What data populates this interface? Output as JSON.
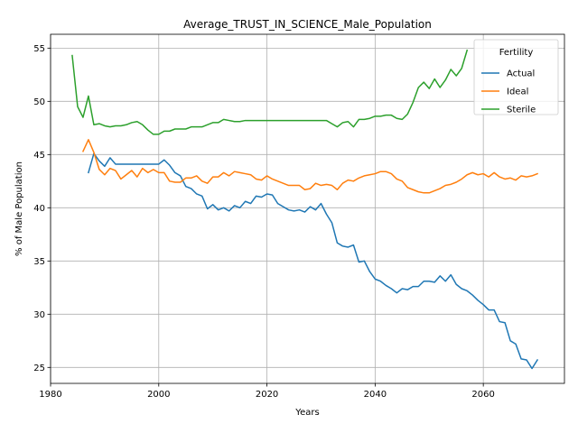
{
  "chart_data": {
    "type": "line",
    "title": "Average_TRUST_IN_SCIENCE_Male_Population",
    "xlabel": "Years",
    "ylabel": "% of Male Population",
    "xlim": [
      1980,
      2075
    ],
    "ylim": [
      23.5,
      56.3
    ],
    "xticks": [
      1980,
      2000,
      2020,
      2040,
      2060
    ],
    "yticks": [
      25,
      30,
      35,
      40,
      45,
      50,
      55
    ],
    "grid": true,
    "legend": {
      "title": "Fertility",
      "position": "top-right"
    },
    "series": [
      {
        "name": "Actual",
        "color": "#1f77b4",
        "x": [
          1987,
          1988,
          1989,
          1990,
          1991,
          1992,
          1993,
          1994,
          1995,
          1996,
          1997,
          1998,
          1999,
          2000,
          2001,
          2002,
          2003,
          2004,
          2005,
          2006,
          2007,
          2008,
          2009,
          2010,
          2011,
          2012,
          2013,
          2014,
          2015,
          2016,
          2017,
          2018,
          2019,
          2020,
          2021,
          2022,
          2023,
          2024,
          2025,
          2026,
          2027,
          2028,
          2029,
          2030,
          2031,
          2032,
          2033,
          2034,
          2035,
          2036,
          2037,
          2038,
          2039,
          2040,
          2041,
          2042,
          2043,
          2044,
          2045,
          2046,
          2047,
          2048,
          2049,
          2050,
          2051,
          2052,
          2053,
          2054,
          2055,
          2056,
          2057,
          2058,
          2059,
          2060,
          2061,
          2062,
          2063,
          2064,
          2065,
          2066,
          2067,
          2068,
          2069,
          2070
        ],
        "y": [
          43.3,
          45.1,
          44.4,
          43.9,
          44.7,
          44.1,
          44.1,
          44.1,
          44.1,
          44.1,
          44.1,
          44.1,
          44.1,
          44.1,
          44.5,
          44.0,
          43.3,
          43.0,
          42.0,
          41.8,
          41.3,
          41.1,
          39.9,
          40.3,
          39.8,
          40.0,
          39.7,
          40.2,
          40.0,
          40.6,
          40.4,
          41.1,
          41.0,
          41.3,
          41.2,
          40.4,
          40.1,
          39.8,
          39.7,
          39.8,
          39.6,
          40.1,
          39.8,
          40.4,
          39.4,
          38.6,
          36.7,
          36.4,
          36.3,
          36.5,
          34.9,
          35.0,
          34.0,
          33.3,
          33.1,
          32.7,
          32.4,
          32.0,
          32.4,
          32.3,
          32.6,
          32.6,
          33.1,
          33.1,
          33.0,
          33.6,
          33.1,
          33.7,
          32.8,
          32.4,
          32.2,
          31.8,
          31.3,
          30.9,
          30.4,
          30.4,
          29.3,
          29.2,
          27.5,
          27.2,
          25.8,
          25.7,
          24.9,
          25.7
        ]
      },
      {
        "name": "Ideal",
        "color": "#ff7f0e",
        "x": [
          1986,
          1987,
          1988,
          1989,
          1990,
          1991,
          1992,
          1993,
          1994,
          1995,
          1996,
          1997,
          1998,
          1999,
          2000,
          2001,
          2002,
          2003,
          2004,
          2005,
          2006,
          2007,
          2008,
          2009,
          2010,
          2011,
          2012,
          2013,
          2014,
          2015,
          2016,
          2017,
          2018,
          2019,
          2020,
          2021,
          2022,
          2023,
          2024,
          2025,
          2026,
          2027,
          2028,
          2029,
          2030,
          2031,
          2032,
          2033,
          2034,
          2035,
          2036,
          2037,
          2038,
          2039,
          2040,
          2041,
          2042,
          2043,
          2044,
          2045,
          2046,
          2047,
          2048,
          2049,
          2050,
          2051,
          2052,
          2053,
          2054,
          2055,
          2056,
          2057,
          2058,
          2059,
          2060,
          2061,
          2062,
          2063,
          2064,
          2065,
          2066,
          2067,
          2068,
          2069,
          2070
        ],
        "y": [
          45.3,
          46.4,
          45.2,
          43.6,
          43.1,
          43.7,
          43.5,
          42.7,
          43.1,
          43.5,
          42.9,
          43.7,
          43.3,
          43.6,
          43.3,
          43.3,
          42.5,
          42.4,
          42.4,
          42.8,
          42.8,
          43.0,
          42.5,
          42.3,
          42.9,
          42.9,
          43.3,
          43.0,
          43.4,
          43.3,
          43.2,
          43.1,
          42.7,
          42.6,
          43.0,
          42.7,
          42.5,
          42.3,
          42.1,
          42.1,
          42.1,
          41.7,
          41.8,
          42.3,
          42.1,
          42.2,
          42.1,
          41.7,
          42.3,
          42.6,
          42.5,
          42.8,
          43.0,
          43.1,
          43.2,
          43.4,
          43.4,
          43.2,
          42.7,
          42.5,
          41.9,
          41.7,
          41.5,
          41.4,
          41.4,
          41.6,
          41.8,
          42.1,
          42.2,
          42.4,
          42.7,
          43.1,
          43.3,
          43.1,
          43.2,
          42.9,
          43.3,
          42.9,
          42.7,
          42.8,
          42.6,
          43.0,
          42.9,
          43.0,
          43.2
        ]
      },
      {
        "name": "Sterile",
        "color": "#2ca02c",
        "x": [
          1984,
          1985,
          1986,
          1987,
          1988,
          1989,
          1990,
          1991,
          1992,
          1993,
          1994,
          1995,
          1996,
          1997,
          1998,
          1999,
          2000,
          2001,
          2002,
          2003,
          2004,
          2005,
          2006,
          2007,
          2008,
          2009,
          2010,
          2011,
          2012,
          2013,
          2014,
          2015,
          2016,
          2017,
          2018,
          2019,
          2020,
          2021,
          2022,
          2023,
          2024,
          2025,
          2026,
          2027,
          2028,
          2029,
          2030,
          2031,
          2032,
          2033,
          2034,
          2035,
          2036,
          2037,
          2038,
          2039,
          2040,
          2041,
          2042,
          2043,
          2044,
          2045,
          2046,
          2047,
          2048,
          2049,
          2050,
          2051,
          2052,
          2053,
          2054,
          2055,
          2056,
          2057
        ],
        "y": [
          54.3,
          49.5,
          48.5,
          50.5,
          47.8,
          47.9,
          47.7,
          47.6,
          47.7,
          47.7,
          47.8,
          48.0,
          48.1,
          47.8,
          47.3,
          46.9,
          46.9,
          47.2,
          47.2,
          47.4,
          47.4,
          47.4,
          47.6,
          47.6,
          47.6,
          47.8,
          48.0,
          48.0,
          48.3,
          48.2,
          48.1,
          48.1,
          48.2,
          48.2,
          48.2,
          48.2,
          48.2,
          48.2,
          48.2,
          48.2,
          48.2,
          48.2,
          48.2,
          48.2,
          48.2,
          48.2,
          48.2,
          48.2,
          47.9,
          47.6,
          48.0,
          48.1,
          47.6,
          48.3,
          48.3,
          48.4,
          48.6,
          48.6,
          48.7,
          48.7,
          48.4,
          48.3,
          48.8,
          49.9,
          51.3,
          51.8,
          51.2,
          52.1,
          51.3,
          52.0,
          53.0,
          52.4,
          53.1,
          54.8
        ]
      }
    ]
  }
}
